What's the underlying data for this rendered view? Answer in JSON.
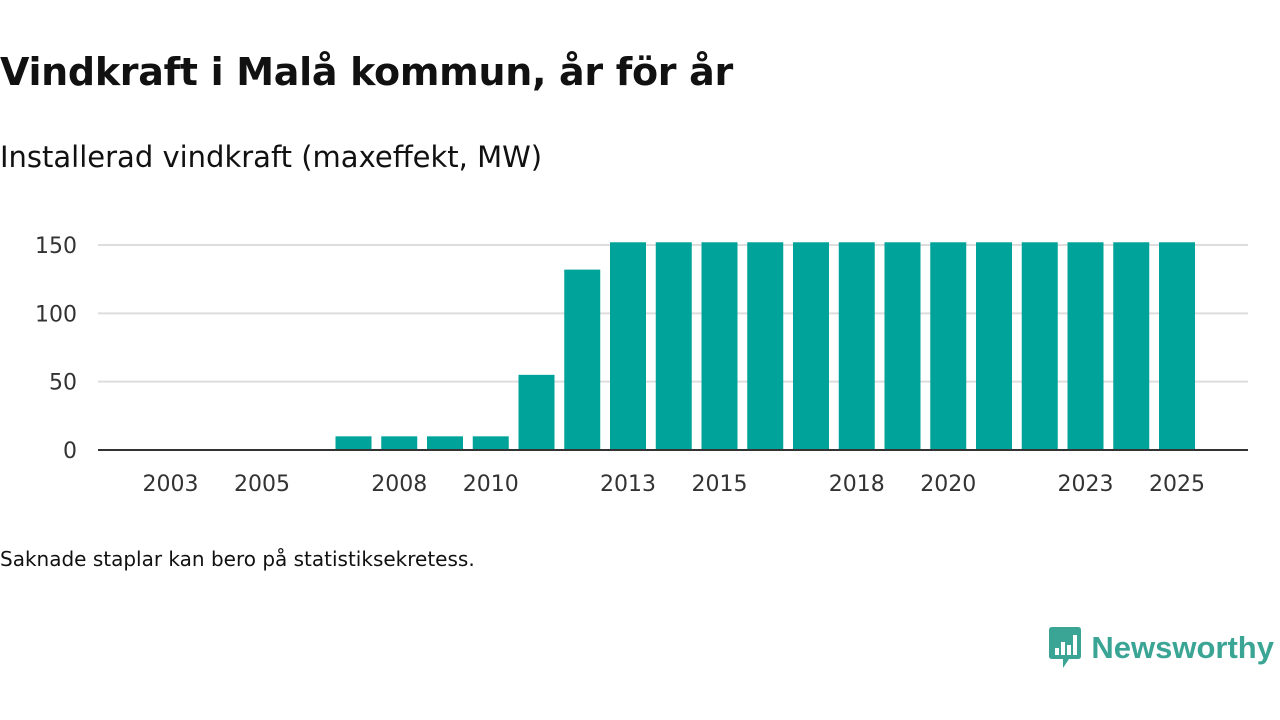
{
  "title": "Vindkraft i Malå kommun, år för år",
  "subtitle": "Installerad vindkraft (maxeffekt, MW)",
  "footnote": "Saknade staplar kan bero på statistiksekretess.",
  "brand": {
    "name": "Newsworthy",
    "logo_icon": "bar-chart-speech-bubble-icon",
    "color": "#3aa594"
  },
  "colors": {
    "bar": "#00a399",
    "grid": "#dddddd",
    "axis": "#333333"
  },
  "chart_data": {
    "type": "bar",
    "title": "Installerad vindkraft (maxeffekt, MW)",
    "xlabel": "",
    "ylabel": "MW",
    "ylim": [
      0,
      150
    ],
    "grid": true,
    "categories": [
      "2003",
      "2004",
      "2005",
      "2006",
      "2007",
      "2008",
      "2009",
      "2010",
      "2011",
      "2012",
      "2013",
      "2014",
      "2015",
      "2016",
      "2017",
      "2018",
      "2019",
      "2020",
      "2021",
      "2022",
      "2023",
      "2024",
      "2025"
    ],
    "values": [
      null,
      null,
      null,
      null,
      10,
      10,
      10,
      10,
      55,
      132,
      152,
      152,
      152,
      152,
      152,
      152,
      152,
      152,
      152,
      152,
      152,
      152,
      152
    ],
    "y_ticks": [
      0,
      50,
      100,
      150
    ],
    "x_tick_labels": [
      "2003",
      "2005",
      "2008",
      "2010",
      "2013",
      "2015",
      "2018",
      "2020",
      "2023",
      "2025"
    ]
  }
}
